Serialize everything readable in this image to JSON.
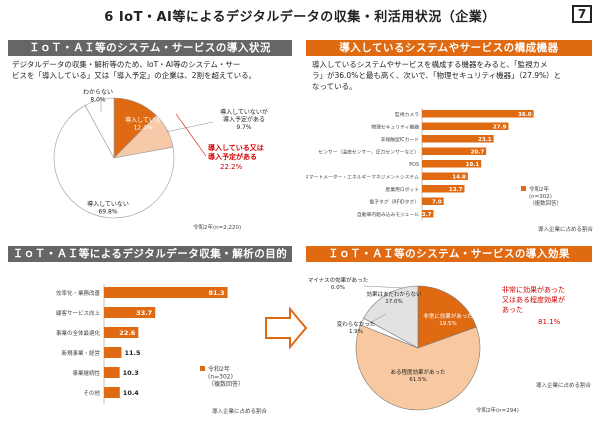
{
  "page": {
    "title": "6 IoT・AI等によるデジタルデータの収集・利活用状況（企業）",
    "number": "7"
  },
  "panels": {
    "tl": {
      "header": "ＩｏＴ・ＡＩ等のシステム・サービスの導入状況",
      "desc1": "デジタルデータの収集・解析等のため、IoT・AI等のシステム・サー",
      "desc2": "ビスを「導入している」又は「導入予定」の企業は、2割を超えている。",
      "callout1": "導入している又は",
      "callout2": "導入予定がある",
      "callout_value": "22.2%",
      "base": "令和2年(n=2,220)"
    },
    "tr": {
      "header": "導入しているシステムやサービスの構成機器",
      "desc1": "導入しているシステムやサービスを構成する機器をみると、「監視カメ",
      "desc2": "ラ」が36.0%と最も高く、次いで、「物理セキュリティ機器」（27.9%）と",
      "desc3": "なっている。",
      "note": "導入企業に占める割合"
    },
    "bl": {
      "header": "ＩｏＴ・ＡＩ等によるデジタルデータ収集・解析の目的",
      "note": "導入企業に占める割合"
    },
    "br": {
      "header": "ＩｏＴ・ＡＩ等のシステム・サービスの導入効果",
      "callout1": "非常に効果があった",
      "callout2": "又はある程度効果が",
      "callout3": "あった",
      "callout_value": "81.1%",
      "note": "導入企業に占める割合",
      "base": "令和2年(n=294)"
    }
  },
  "chart_data": [
    {
      "type": "pie",
      "labels": [
        "導入している",
        "導入していないが導入予定がある",
        "導入していない",
        "わからない"
      ],
      "values": [
        12.4,
        9.7,
        69.8,
        8.0
      ],
      "label_lines": [
        [
          "導入している",
          "12.4%"
        ],
        [
          "導入していないが",
          "導入予定がある",
          "9.7%"
        ],
        [
          "導入していない",
          "69.8%"
        ],
        [
          "わからない",
          "8.0%"
        ]
      ],
      "colors": [
        "#e06a12",
        "#f6c9a8",
        "#ffffff",
        "#ffffff"
      ]
    },
    {
      "type": "bar",
      "orientation": "horizontal",
      "categories": [
        "監視カメラ",
        "物理セキュリティ機器",
        "非接触型ICカード",
        "センサー（温度センサー、圧力センサーなど）",
        "POS",
        "スマートメーター・エネルギーマネジメントシステム",
        "産業用ロボット",
        "電子タグ（RFIDタグ）",
        "自動車内組み込みモジュール"
      ],
      "values": [
        36.0,
        27.9,
        23.1,
        20.7,
        19.1,
        14.8,
        13.7,
        7.0,
        3.7
      ],
      "value_labels": [
        "36.0",
        "27.9",
        "23.1",
        "20.7",
        "19.1",
        "14.8",
        "13.7",
        "7.0",
        "3.7"
      ],
      "legend": [
        "令和2年",
        "(n=302)",
        "（複数回答）"
      ],
      "color": "#e06a12",
      "xlim": [
        0,
        40
      ]
    },
    {
      "type": "bar",
      "orientation": "horizontal",
      "categories": [
        "効率化・業務改善",
        "顧客サービス向上",
        "事業の全体最適化",
        "新規事業・経営",
        "事業継続性",
        "その他"
      ],
      "values": [
        81.3,
        33.7,
        22.6,
        11.5,
        10.3,
        10.4
      ],
      "value_labels": [
        "81.3",
        "33.7",
        "22.6",
        "11.5",
        "10.3",
        "10.4"
      ],
      "legend": [
        "令和2年",
        "(n=302)",
        "（複数回答）"
      ],
      "color": "#e06a12",
      "xlim": [
        0,
        100
      ]
    },
    {
      "type": "pie",
      "labels": [
        "非常に効果があった",
        "ある程度効果があった",
        "変わらなかった",
        "マイナスの効果があった",
        "効果はまだわからない"
      ],
      "values": [
        19.5,
        61.5,
        1.9,
        0.0,
        17.0
      ],
      "label_lines": [
        [
          "非常に効果があった",
          "19.5%"
        ],
        [
          "ある程度効果があった",
          "61.5%"
        ],
        [
          "変わらなかった",
          "1.9%"
        ],
        [
          "マイナスの効果があった",
          "0.0%"
        ],
        [
          "効果はまだわからない",
          "17.0%"
        ]
      ],
      "colors": [
        "#e06a12",
        "#f8c9a0",
        "#ffffff",
        "#ffffff",
        "#e2e2e2"
      ]
    }
  ]
}
